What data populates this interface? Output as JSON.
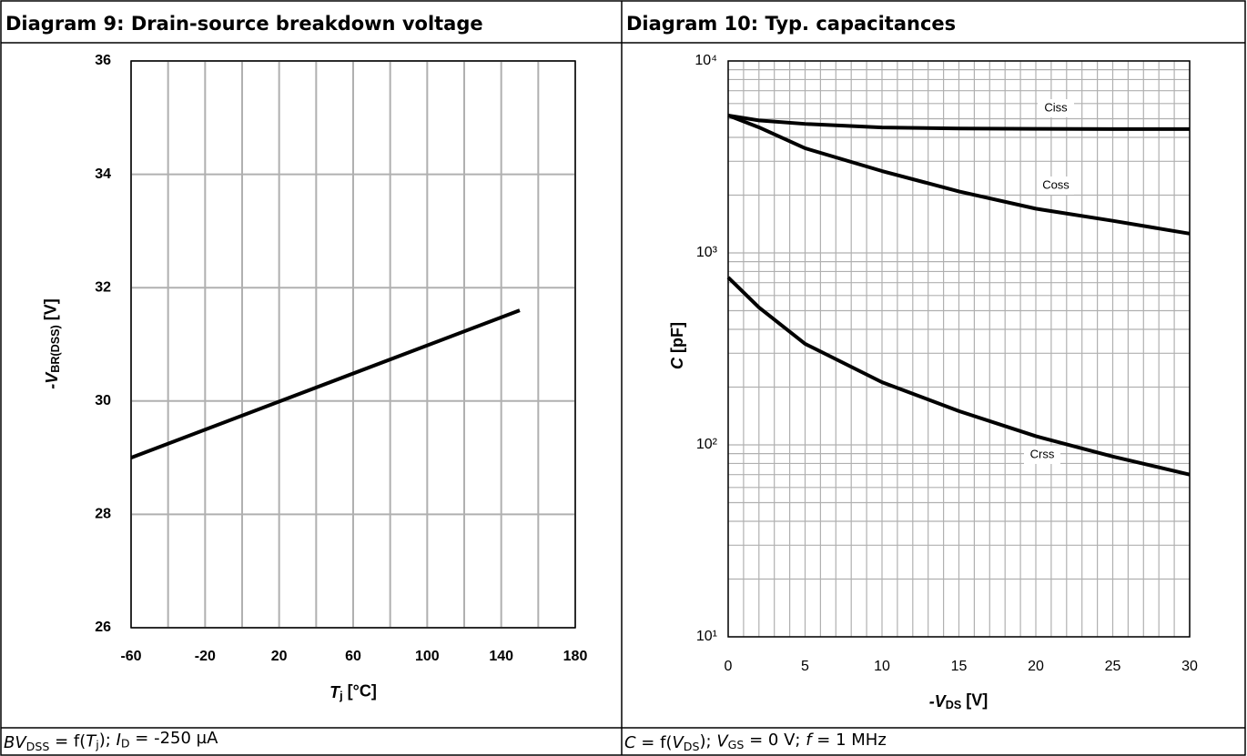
{
  "chart_data": [
    {
      "type": "line",
      "title": "Diagram 9: Drain-source breakdown voltage",
      "x": [
        -60,
        150
      ],
      "series": [
        {
          "color": "#000000",
          "values": [
            29.0,
            31.6
          ]
        }
      ],
      "xlim": [
        -60,
        180
      ],
      "xticks": [
        -60,
        -20,
        20,
        60,
        100,
        140,
        180
      ],
      "x_minor_ticks": [
        -40,
        0,
        40,
        80,
        120,
        160
      ],
      "ylim": [
        26,
        36
      ],
      "yticks": [
        26,
        28,
        30,
        32,
        34,
        36
      ],
      "grid": true,
      "ylog": false,
      "xlabel": [
        {
          "text": "T",
          "italic": true
        },
        {
          "text": "j",
          "sub": true
        },
        {
          "text": " [°C]"
        }
      ],
      "ylabel": [
        {
          "text": "-V",
          "italic": true
        },
        {
          "text": "BR(DSS)",
          "sub": true
        },
        {
          "text": " [V]"
        }
      ],
      "caption": [
        {
          "text": "BV",
          "italic": true
        },
        {
          "text": "DSS",
          "sub": true
        },
        {
          "text": " = f("
        },
        {
          "text": "T",
          "italic": true
        },
        {
          "text": "j",
          "sub": true
        },
        {
          "text": "); "
        },
        {
          "text": "I",
          "italic": true
        },
        {
          "text": "D",
          "sub": true
        },
        {
          "text": " = -250 µA"
        }
      ]
    },
    {
      "type": "line",
      "title": "Diagram 10: Typ. capacitances",
      "x": [
        0,
        2,
        5,
        10,
        15,
        20,
        25,
        30
      ],
      "series": [
        {
          "name": "Ciss",
          "color": "#000000",
          "values": [
            5200,
            4900,
            4700,
            4500,
            4450,
            4430,
            4420,
            4420
          ]
        },
        {
          "name": "Coss",
          "color": "#000000",
          "values": [
            5200,
            4510,
            3510,
            2670,
            2090,
            1700,
            1470,
            1260
          ]
        },
        {
          "name": "Crss",
          "color": "#000000",
          "values": [
            745,
            520,
            336,
            212,
            150,
            111,
            87,
            70
          ]
        }
      ],
      "xlim": [
        0,
        30
      ],
      "xticks": [
        0,
        5,
        10,
        15,
        20,
        25,
        30
      ],
      "x_minor_ticks": [
        1,
        2,
        3,
        4,
        6,
        7,
        8,
        9,
        11,
        12,
        13,
        14,
        16,
        17,
        18,
        19,
        21,
        22,
        23,
        24,
        26,
        27,
        28,
        29
      ],
      "ylim": [
        10,
        10000
      ],
      "ylog": true,
      "grid": true,
      "yticks": [
        {
          "value": 10,
          "label": "10¹"
        },
        {
          "value": 100,
          "label": "10²"
        },
        {
          "value": 1000,
          "label": "10³"
        },
        {
          "value": 10000,
          "label": "10⁴"
        }
      ],
      "y_minor_ticks": [
        20,
        30,
        40,
        50,
        60,
        70,
        80,
        90,
        200,
        300,
        400,
        500,
        600,
        700,
        800,
        900,
        2000,
        3000,
        4000,
        5000,
        6000,
        7000,
        8000,
        9000
      ],
      "xlabel": [
        {
          "text": "-V",
          "italic": true
        },
        {
          "text": "DS",
          "sub": true
        },
        {
          "text": " [V]"
        }
      ],
      "ylabel": [
        {
          "text": "C",
          "italic": true
        },
        {
          "text": " [pF]"
        }
      ],
      "caption": [
        {
          "text": "C",
          "italic": true
        },
        {
          "text": " = f("
        },
        {
          "text": "V",
          "italic": true
        },
        {
          "text": "DS",
          "sub": true
        },
        {
          "text": "); "
        },
        {
          "text": "V",
          "italic": true
        },
        {
          "text": "GS",
          "sub": true
        },
        {
          "text": " = 0 V;  "
        },
        {
          "text": "f",
          "italic": true
        },
        {
          "text": " = 1 MHz"
        }
      ]
    }
  ]
}
